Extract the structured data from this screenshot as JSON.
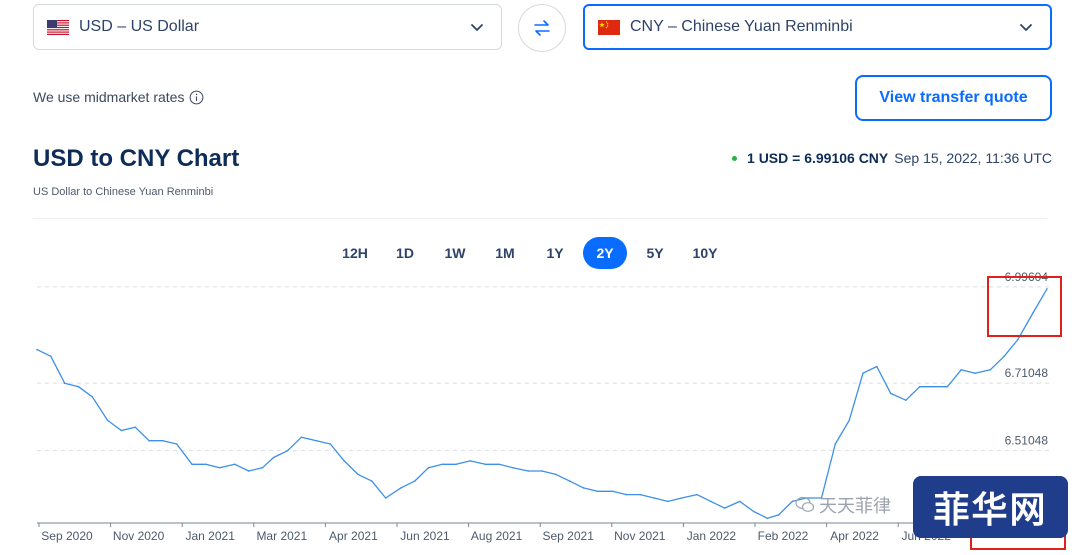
{
  "converter": {
    "from": {
      "code": "USD",
      "name": "US Dollar",
      "flag": "us-flag-icon"
    },
    "to": {
      "code": "CNY",
      "name": "Chinese Yuan Renminbi",
      "flag": "cn-flag-icon"
    },
    "from_label": "USD – US Dollar",
    "to_label": "CNY – Chinese Yuan Renminbi",
    "midmarket_text": "We use midmarket rates",
    "quote_button": "View transfer quote"
  },
  "chart_header": {
    "title": "USD to CNY Chart",
    "subtitle": "US Dollar to Chinese Yuan Renminbi",
    "rate": "1 USD = 6.99106 CNY",
    "timestamp": "Sep 15, 2022, 11:36 UTC"
  },
  "ranges": [
    "12H",
    "1D",
    "1W",
    "1M",
    "1Y",
    "2Y",
    "5Y",
    "10Y"
  ],
  "active_range": "2Y",
  "watermark": {
    "text": "天天菲律",
    "badge": "菲华网"
  },
  "colors": {
    "accent": "#0a6cff",
    "line": "#3d8fe8",
    "highlight": "#e0201b",
    "status_dot": "#29b344"
  },
  "chart_data": {
    "type": "line",
    "series": [
      {
        "x": [
          "2020-09-15",
          "2020-09-25",
          "2020-10-05",
          "2020-10-15",
          "2020-10-25",
          "2020-11-05",
          "2020-11-15",
          "2020-11-25",
          "2020-12-05",
          "2020-12-15",
          "2020-12-25",
          "2021-01-05",
          "2021-01-15",
          "2021-01-25",
          "2021-02-05",
          "2021-02-15",
          "2021-02-25",
          "2021-03-05",
          "2021-03-15",
          "2021-03-25",
          "2021-04-05",
          "2021-04-15",
          "2021-04-25",
          "2021-05-05",
          "2021-05-15",
          "2021-05-25",
          "2021-06-05",
          "2021-06-15",
          "2021-06-25",
          "2021-07-05",
          "2021-07-15",
          "2021-07-25",
          "2021-08-05",
          "2021-08-15",
          "2021-08-25",
          "2021-09-05",
          "2021-09-15",
          "2021-09-25",
          "2021-10-05",
          "2021-10-15",
          "2021-10-25",
          "2021-11-05",
          "2021-11-15",
          "2021-11-25",
          "2021-12-05",
          "2021-12-15",
          "2021-12-25",
          "2022-01-05",
          "2022-01-15",
          "2022-01-25",
          "2022-02-05",
          "2022-02-15",
          "2022-02-25",
          "2022-03-05",
          "2022-03-15",
          "2022-03-25",
          "2022-04-05",
          "2022-04-15",
          "2022-04-25",
          "2022-05-05",
          "2022-05-15",
          "2022-05-25",
          "2022-06-05",
          "2022-06-15",
          "2022-06-25",
          "2022-07-05",
          "2022-07-15",
          "2022-07-25",
          "2022-08-05",
          "2022-08-15",
          "2022-08-25",
          "2022-09-05",
          "2022-09-15"
        ],
        "values": [
          6.81,
          6.79,
          6.71,
          6.7,
          6.67,
          6.6,
          6.57,
          6.58,
          6.54,
          6.54,
          6.53,
          6.47,
          6.47,
          6.46,
          6.47,
          6.45,
          6.46,
          6.49,
          6.51,
          6.55,
          6.54,
          6.53,
          6.48,
          6.44,
          6.42,
          6.37,
          6.4,
          6.42,
          6.46,
          6.47,
          6.47,
          6.48,
          6.47,
          6.47,
          6.46,
          6.45,
          6.45,
          6.44,
          6.42,
          6.4,
          6.39,
          6.39,
          6.38,
          6.38,
          6.37,
          6.36,
          6.37,
          6.38,
          6.36,
          6.34,
          6.36,
          6.33,
          6.31,
          6.32,
          6.36,
          6.37,
          6.37,
          6.53,
          6.6,
          6.74,
          6.76,
          6.68,
          6.66,
          6.7,
          6.7,
          6.7,
          6.75,
          6.74,
          6.75,
          6.79,
          6.84,
          6.92,
          6.99
        ]
      }
    ],
    "xticks": [
      "Sep 2020",
      "Nov 2020",
      "Jan 2021",
      "Mar 2021",
      "Apr 2021",
      "Jun 2021",
      "Aug 2021",
      "Sep 2021",
      "Nov 2021",
      "Jan 2022",
      "Feb 2022",
      "Apr 2022",
      "Jun 2022"
    ],
    "yticks": [
      6.99604,
      6.71048,
      6.51048
    ],
    "ylim": [
      6.29,
      7.04
    ],
    "grid": true
  }
}
